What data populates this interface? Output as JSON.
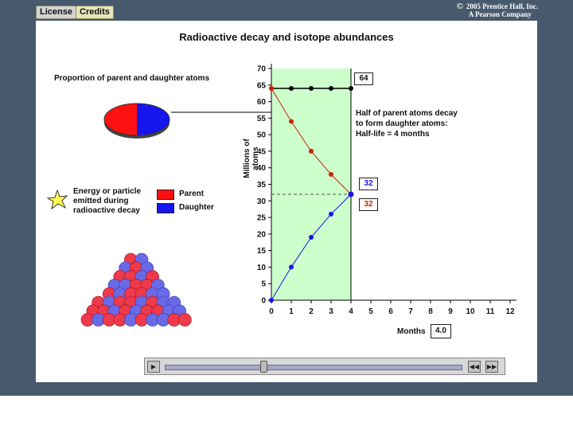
{
  "header": {
    "license_label": "License",
    "credits_label": "Credits",
    "copyright_symbol": "©",
    "copyright_line1": "2005 Prentice Hall, Inc.",
    "copyright_line2": "A Pearson Company"
  },
  "panel": {
    "title": "Radioactive decay and isotope abundances",
    "proportion_label": "Proportion of parent and daughter atoms",
    "halflife_line1": "Half of parent atoms decay",
    "halflife_line2": "to form daughter atoms:",
    "halflife_line3": "Half-life = 4 months",
    "energy_line1": "Energy or particle",
    "energy_line2": "emitted during",
    "energy_line3": "radioactive decay",
    "legend_parent": "Parent",
    "legend_daughter": "Daughter",
    "months_label": "Months",
    "months_value": "4.0",
    "pie_parent_fraction": 0.5,
    "pie_daughter_fraction": 0.5
  },
  "colors": {
    "parent": "#ff1111",
    "daughter": "#1515ee",
    "halflife_band": "#ccffcc",
    "frame": "#475a6d"
  },
  "chart_data": {
    "type": "line",
    "xlabel": "Months",
    "ylabel": "Millions of atoms",
    "xlim": [
      0,
      12
    ],
    "ylim": [
      0,
      70
    ],
    "xticks": [
      0,
      1,
      2,
      3,
      4,
      5,
      6,
      7,
      8,
      9,
      10,
      11,
      12
    ],
    "yticks": [
      0,
      5,
      10,
      15,
      20,
      25,
      30,
      35,
      40,
      45,
      50,
      55,
      60,
      65,
      70
    ],
    "shaded_x_range": [
      0,
      4
    ],
    "series": [
      {
        "key": "total",
        "x": [
          0,
          1,
          2,
          3,
          4
        ],
        "values": [
          64,
          64,
          64,
          64,
          64
        ],
        "color": "#000000"
      },
      {
        "key": "parent",
        "x": [
          0,
          1,
          2,
          3,
          4
        ],
        "values": [
          64,
          54,
          45,
          38,
          32
        ],
        "color": "#cc2200"
      },
      {
        "key": "daughter",
        "x": [
          0,
          1,
          2,
          3,
          4
        ],
        "values": [
          0,
          10,
          19,
          26,
          32
        ],
        "color": "#1515ee"
      }
    ],
    "annotations": {
      "total_value": "64",
      "daughter_value": "32",
      "parent_value": "32"
    }
  },
  "controls": {
    "play_icon": "play-icon",
    "rewind_icon": "rewind-icon",
    "fast_forward_icon": "fast-forward-icon",
    "progress_fraction": 0.33
  }
}
